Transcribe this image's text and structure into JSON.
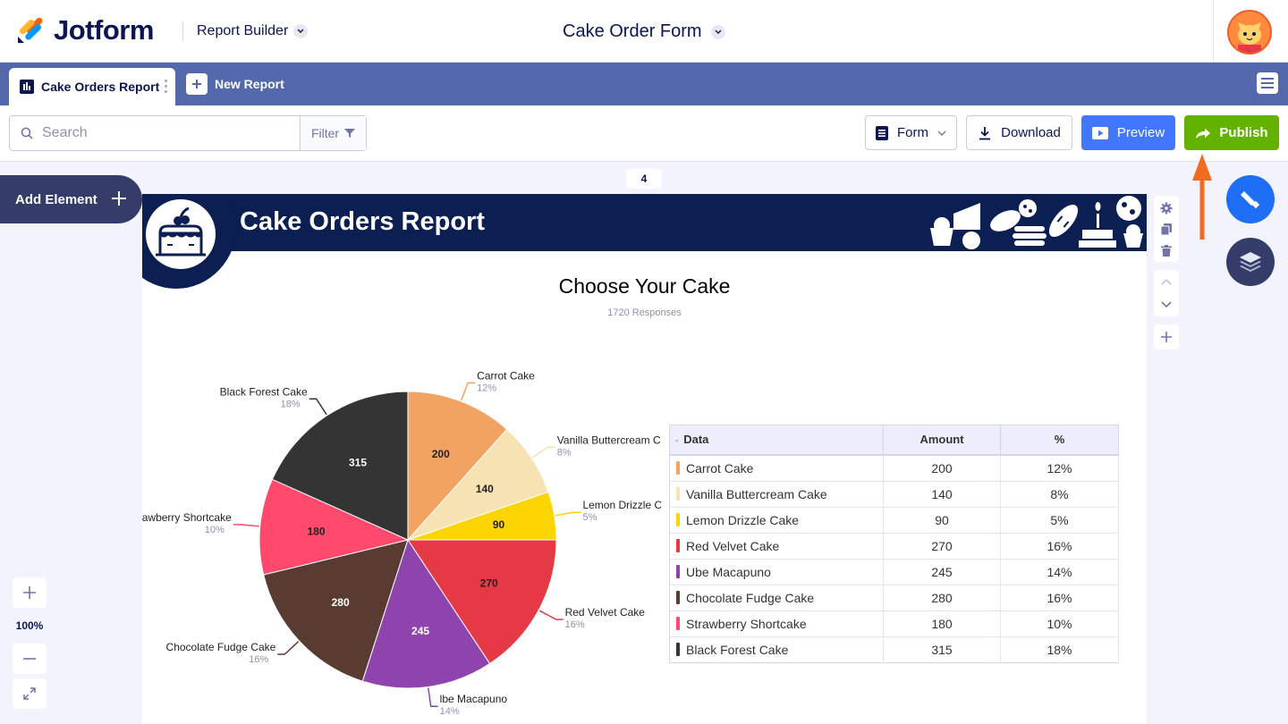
{
  "header": {
    "brand": "Jotform",
    "app_name": "Report Builder",
    "form_title": "Cake Order Form"
  },
  "tabs": {
    "active_tab": "Cake Orders Report",
    "new_report": "New Report"
  },
  "toolbar": {
    "search_placeholder": "Search",
    "filter_label": "Filter",
    "form_label": "Form",
    "download_label": "Download",
    "preview_label": "Preview",
    "publish_label": "Publish"
  },
  "left_panel": {
    "add_element_label": "Add Element",
    "zoom_level": "100%"
  },
  "page": {
    "page_number": "4",
    "report_title": "Cake Orders Report"
  },
  "chart_data": {
    "type": "pie",
    "title": "Choose Your Cake",
    "subtitle": "1720 Responses",
    "categories": [
      "Carrot Cake",
      "Vanilla Buttercream Cake",
      "Lemon Drizzle Cake",
      "Red Velvet Cake",
      "Ube Macapuno",
      "Chocolate Fudge Cake",
      "Strawberry Shortcake",
      "Black Forest Cake"
    ],
    "values": [
      200,
      140,
      90,
      270,
      245,
      280,
      180,
      315
    ],
    "percent_labels": [
      "12%",
      "8%",
      "5%",
      "16%",
      "14%",
      "16%",
      "10%",
      "18%"
    ],
    "colors": [
      "#f2a361",
      "#f6e2b3",
      "#fcd500",
      "#e53946",
      "#8f44ad",
      "#5a3b32",
      "#ff4a6e",
      "#343434"
    ],
    "value_label_colors": [
      "#222222",
      "#222222",
      "#222222",
      "#222222",
      "#ffffff",
      "#ffffff",
      "#222222",
      "#ffffff"
    ],
    "outer_label_overrides": {
      "Ube Macapuno": "lbe Macapuno"
    }
  },
  "table": {
    "headers": [
      "Data",
      "Amount",
      "%"
    ],
    "rows": [
      {
        "label": "Carrot Cake",
        "amount": "200",
        "pct": "12%",
        "color": "#f2a361"
      },
      {
        "label": "Vanilla Buttercream Cake",
        "amount": "140",
        "pct": "8%",
        "color": "#f6e2b3"
      },
      {
        "label": "Lemon Drizzle Cake",
        "amount": "90",
        "pct": "5%",
        "color": "#fcd500"
      },
      {
        "label": "Red Velvet Cake",
        "amount": "270",
        "pct": "16%",
        "color": "#e53946"
      },
      {
        "label": "Ube Macapuno",
        "amount": "245",
        "pct": "14%",
        "color": "#8f44ad"
      },
      {
        "label": "Chocolate Fudge Cake",
        "amount": "280",
        "pct": "16%",
        "color": "#5a3b32"
      },
      {
        "label": "Strawberry Shortcake",
        "amount": "180",
        "pct": "10%",
        "color": "#ff4a6e"
      },
      {
        "label": "Black Forest Cake",
        "amount": "315",
        "pct": "18%",
        "color": "#343434"
      }
    ]
  }
}
